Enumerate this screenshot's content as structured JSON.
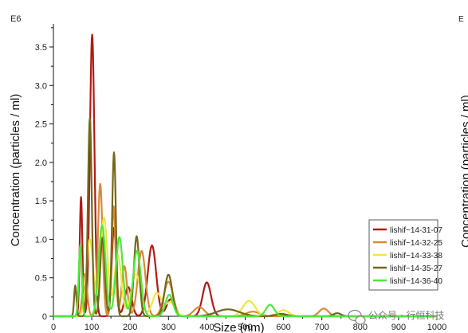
{
  "chart_data": {
    "type": "line",
    "xlabel": "Size (nm)",
    "ylabel": "Concentration (particles / ml)",
    "exponent_label": "E6",
    "xlim": [
      0,
      1000
    ],
    "ylim": [
      0,
      3.8
    ],
    "xticks": [
      0,
      100,
      200,
      300,
      400,
      500,
      600,
      700,
      800,
      900,
      1000
    ],
    "yticks": [
      0,
      0.5,
      1.0,
      1.5,
      2.0,
      2.5,
      3.0,
      3.5
    ],
    "ytick_labels": [
      "0",
      "0.5",
      "1.0",
      "1.5",
      "2.0",
      "2.5",
      "3.0",
      "3.5"
    ],
    "legend_position": "bottom-right",
    "grid": false,
    "series": [
      {
        "name": "lishif~14-31-07",
        "color": "#b01c14",
        "peaks": [
          {
            "x": 72,
            "y": 1.55,
            "w": 3.5
          },
          {
            "x": 101,
            "y": 3.66,
            "w": 6
          },
          {
            "x": 158,
            "y": 1.15,
            "w": 6
          },
          {
            "x": 195,
            "y": 0.38,
            "w": 9
          },
          {
            "x": 257,
            "y": 0.92,
            "w": 11
          },
          {
            "x": 305,
            "y": 0.22,
            "w": 10
          },
          {
            "x": 400,
            "y": 0.44,
            "w": 11
          },
          {
            "x": 590,
            "y": 0.03,
            "w": 15
          }
        ]
      },
      {
        "name": "lishif~14-32-25",
        "color": "#d98a36",
        "peaks": [
          {
            "x": 82,
            "y": 0.55,
            "w": 6
          },
          {
            "x": 122,
            "y": 1.72,
            "w": 6
          },
          {
            "x": 157,
            "y": 1.43,
            "w": 5
          },
          {
            "x": 185,
            "y": 0.65,
            "w": 7
          },
          {
            "x": 230,
            "y": 0.85,
            "w": 10
          },
          {
            "x": 300,
            "y": 0.45,
            "w": 12
          },
          {
            "x": 380,
            "y": 0.12,
            "w": 14
          },
          {
            "x": 520,
            "y": 0.06,
            "w": 18
          },
          {
            "x": 705,
            "y": 0.1,
            "w": 12
          }
        ]
      },
      {
        "name": "lishif~14-33-38",
        "color": "#f0e640",
        "peaks": [
          {
            "x": 95,
            "y": 1.0,
            "w": 9
          },
          {
            "x": 132,
            "y": 1.28,
            "w": 9
          },
          {
            "x": 168,
            "y": 0.8,
            "w": 9
          },
          {
            "x": 215,
            "y": 0.55,
            "w": 12
          },
          {
            "x": 270,
            "y": 0.3,
            "w": 12
          },
          {
            "x": 305,
            "y": 0.18,
            "w": 12
          },
          {
            "x": 510,
            "y": 0.2,
            "w": 16
          },
          {
            "x": 600,
            "y": 0.08,
            "w": 14
          }
        ]
      },
      {
        "name": "lishif~14-35-27",
        "color": "#74681a",
        "peaks": [
          {
            "x": 57,
            "y": 0.4,
            "w": 3
          },
          {
            "x": 95,
            "y": 2.57,
            "w": 5
          },
          {
            "x": 128,
            "y": 1.02,
            "w": 6
          },
          {
            "x": 158,
            "y": 2.13,
            "w": 5
          },
          {
            "x": 217,
            "y": 1.04,
            "w": 7
          },
          {
            "x": 300,
            "y": 0.54,
            "w": 10
          },
          {
            "x": 455,
            "y": 0.09,
            "w": 30
          },
          {
            "x": 595,
            "y": 0.03,
            "w": 15
          },
          {
            "x": 740,
            "y": 0.04,
            "w": 10
          }
        ]
      },
      {
        "name": "lishif~14-36-40",
        "color": "#4ee83c",
        "peaks": [
          {
            "x": 70,
            "y": 0.92,
            "w": 4
          },
          {
            "x": 127,
            "y": 1.18,
            "w": 9
          },
          {
            "x": 172,
            "y": 1.03,
            "w": 9
          },
          {
            "x": 218,
            "y": 0.85,
            "w": 10
          },
          {
            "x": 302,
            "y": 0.28,
            "w": 10
          },
          {
            "x": 565,
            "y": 0.15,
            "w": 11
          }
        ]
      }
    ]
  },
  "right_edge": {
    "partial_label": "E",
    "clipped_axis_title": "Concentration (particles / ml)"
  },
  "watermark": {
    "text": "公众号 · 行恒科技",
    "icon": "wechat-logo"
  }
}
